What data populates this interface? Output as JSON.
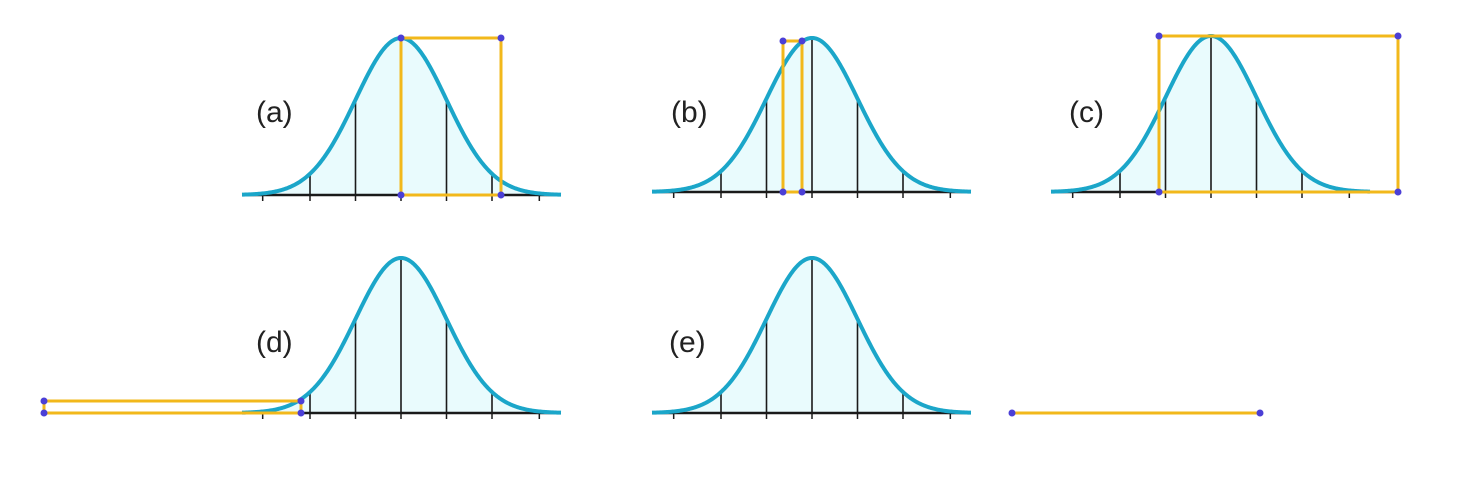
{
  "colors": {
    "background": "#ffffff",
    "curve": "#1ba6c9",
    "fill": "#e9fbfd",
    "axis": "#1a1a1a",
    "gridline": "#1a1a1a",
    "highlight": "#f2b81b",
    "point": "#4b3fd6"
  },
  "panels": [
    {
      "id": "a",
      "label": "(a)"
    },
    {
      "id": "b",
      "label": "(b)"
    },
    {
      "id": "c",
      "label": "(c)"
    },
    {
      "id": "d",
      "label": "(d)"
    },
    {
      "id": "e",
      "label": "(e)"
    }
  ]
}
